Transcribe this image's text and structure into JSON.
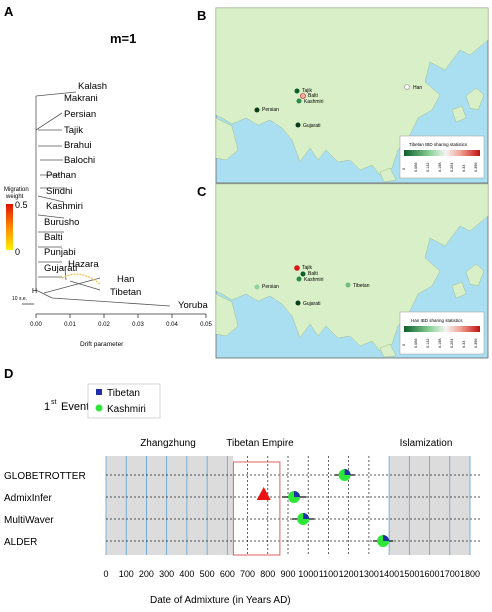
{
  "panels": {
    "a": "A",
    "b": "B",
    "c": "C",
    "d": "D"
  },
  "panel_a": {
    "title": "m=1",
    "populations": [
      "Kalash",
      "Makrani",
      "Persian",
      "Tajik",
      "Brahui",
      "Balochi",
      "Pathan",
      "Sindhi",
      "Kashmiri",
      "Burusho",
      "Balti",
      "Punjabi",
      "Gujarati",
      "Hazara",
      "Han",
      "Tibetan",
      "Yoruba"
    ],
    "colorbar": {
      "title_line1": "Migration",
      "title_line2": "weight",
      "max_label": "0.5",
      "min_label": "0"
    },
    "scale_label": "10 s.e.",
    "h_label": "H",
    "xaxis": {
      "ticks": [
        "0.00",
        "0.01",
        "0.02",
        "0.03",
        "0.04",
        "0.05"
      ],
      "label": "Drift parameter"
    }
  },
  "panel_b": {
    "map_labels": [
      "Tajik",
      "Balti",
      "Kashmiri",
      "Persian",
      "Gujarati",
      "Han"
    ],
    "legend_title": "Tibetan IBD sharing statistics",
    "legend_ticks": [
      "0",
      "0.066",
      "0.132",
      "0.198",
      "0.264",
      "0.33",
      "0.396"
    ]
  },
  "panel_c": {
    "map_labels": [
      "Tajik",
      "Balti",
      "Kashmiri",
      "Persian",
      "Gujarati",
      "Tibetan"
    ],
    "legend_title": "Han IBD sharing statistics",
    "legend_ticks": [
      "0",
      "0.066",
      "0.132",
      "0.198",
      "0.264",
      "0.33",
      "0.396"
    ]
  },
  "panel_d": {
    "event_label": "1",
    "event_sup": "st",
    "event_word": "Event",
    "legend": [
      {
        "name": "Tibetan",
        "color": "#1f2fa8"
      },
      {
        "name": "Kashmiri",
        "color": "#2ee63a"
      }
    ],
    "periods": [
      "Zhangzhung",
      "Tibetan Empire",
      "Islamization"
    ],
    "methods": [
      "GLOBETROTTER",
      "AdmixInfer",
      "MultiWaver",
      "ALDER"
    ],
    "xaxis": {
      "ticks": [
        "0",
        "100",
        "200",
        "300",
        "400",
        "500",
        "600",
        "700",
        "800",
        "900",
        "1000",
        "1100",
        "1200",
        "1300",
        "1400",
        "1500",
        "1600",
        "1700",
        "1800"
      ],
      "label": "Date of Admixture (in Years AD)"
    }
  },
  "chart_data": {
    "type": "scatter",
    "title": "",
    "xlabel": "Date of Admixture (in Years AD)",
    "ylabel": "",
    "xlim": [
      0,
      1800
    ],
    "categories": [
      "GLOBETROTTER",
      "AdmixInfer",
      "MultiWaver",
      "ALDER"
    ],
    "series": [
      {
        "name": "Tibetan",
        "values": [
          1180,
          930,
          975,
          1370
        ]
      },
      {
        "name": "Kashmiri",
        "values": [
          1180,
          930,
          975,
          1370
        ]
      }
    ],
    "intervals": [
      [
        1130,
        1230
      ],
      [
        870,
        990
      ],
      [
        920,
        1030
      ],
      [
        1320,
        1420
      ]
    ],
    "marker": {
      "label": "triangle",
      "method": "AdmixInfer",
      "x": 780,
      "color": "#ee1111"
    },
    "shaded_periods": [
      [
        0,
        630
      ],
      [
        1400,
        1800
      ]
    ],
    "box_period": [
      630,
      860
    ],
    "colors": {
      "tibetan": "#1f2fa8",
      "kashmiri": "#2ee63a",
      "triangle": "#ee1111",
      "box": "#e06060"
    }
  }
}
